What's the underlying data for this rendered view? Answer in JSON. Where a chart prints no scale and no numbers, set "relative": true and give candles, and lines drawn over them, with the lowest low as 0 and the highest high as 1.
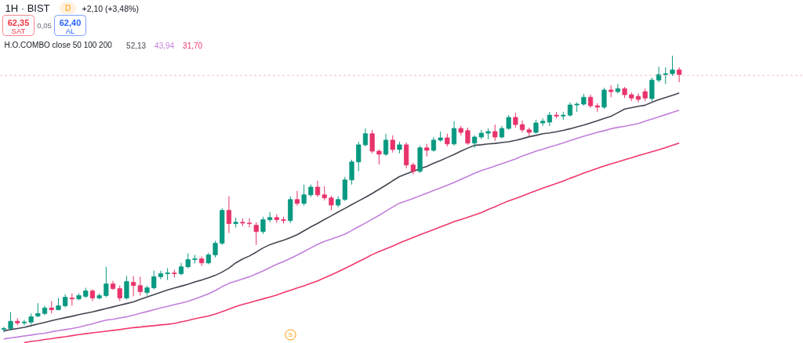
{
  "chart_data": {
    "type": "candlestick",
    "title": "1H · BIST",
    "relative": true,
    "categories": [
      null,
      null,
      null,
      null,
      null,
      null,
      null,
      null,
      null,
      null,
      null,
      null,
      null,
      null,
      null,
      null,
      null,
      null,
      null,
      null,
      null,
      null,
      null,
      null,
      null,
      null,
      null,
      null,
      null,
      null,
      null,
      null,
      null,
      null,
      null,
      null,
      null,
      null,
      null,
      null,
      null,
      null,
      null,
      null,
      null,
      null,
      null,
      null,
      null,
      null,
      null,
      null,
      null,
      null,
      null,
      null,
      null,
      null,
      null,
      null,
      null,
      null,
      null,
      null,
      null,
      null,
      null,
      null,
      null,
      null,
      null,
      null,
      null,
      null,
      null,
      null,
      null,
      null,
      null,
      null,
      null,
      null,
      null,
      null,
      null,
      null,
      null,
      null,
      null,
      null,
      null,
      null,
      null,
      null,
      null,
      null,
      null,
      null,
      null,
      null
    ],
    "ohlc": [
      [
        0.011,
        0.02,
        0,
        0.014
      ],
      [
        0.014,
        0.073,
        0.008,
        0.04
      ],
      [
        0.04,
        0.051,
        0.025,
        0.034
      ],
      [
        0.034,
        0.045,
        0.025,
        0.037
      ],
      [
        0.037,
        0.068,
        0.028,
        0.056
      ],
      [
        0.059,
        0.105,
        0.054,
        0.068
      ],
      [
        0.068,
        0.096,
        0.062,
        0.088
      ],
      [
        0.088,
        0.113,
        0.068,
        0.082
      ],
      [
        0.082,
        0.124,
        0.079,
        0.096
      ],
      [
        0.096,
        0.138,
        0.09,
        0.127
      ],
      [
        0.124,
        0.141,
        0.096,
        0.121
      ],
      [
        0.121,
        0.141,
        0.116,
        0.133
      ],
      [
        0.13,
        0.161,
        0.124,
        0.15
      ],
      [
        0.15,
        0.155,
        0.113,
        0.124
      ],
      [
        0.124,
        0.141,
        0.119,
        0.133
      ],
      [
        0.133,
        0.237,
        0.127,
        0.175
      ],
      [
        0.175,
        0.186,
        0.153,
        0.158
      ],
      [
        0.158,
        0.169,
        0.113,
        0.124
      ],
      [
        0.124,
        0.203,
        0.119,
        0.184
      ],
      [
        0.181,
        0.203,
        0.13,
        0.169
      ],
      [
        0.169,
        0.201,
        0.133,
        0.147
      ],
      [
        0.144,
        0.169,
        0.133,
        0.161
      ],
      [
        0.161,
        0.223,
        0.155,
        0.201
      ],
      [
        0.201,
        0.223,
        0.192,
        0.212
      ],
      [
        0.212,
        0.232,
        0.189,
        0.215
      ],
      [
        0.215,
        0.226,
        0.198,
        0.212
      ],
      [
        0.212,
        0.251,
        0.206,
        0.237
      ],
      [
        0.237,
        0.285,
        0.232,
        0.263
      ],
      [
        0.263,
        0.28,
        0.249,
        0.266
      ],
      [
        0.266,
        0.274,
        0.24,
        0.251
      ],
      [
        0.251,
        0.288,
        0.246,
        0.28
      ],
      [
        0.28,
        0.331,
        0.271,
        0.322
      ],
      [
        0.322,
        0.449,
        0.316,
        0.441
      ],
      [
        0.441,
        0.492,
        0.359,
        0.393
      ],
      [
        0.393,
        0.415,
        0.379,
        0.398
      ],
      [
        0.398,
        0.412,
        0.384,
        0.395
      ],
      [
        0.395,
        0.412,
        0.379,
        0.393
      ],
      [
        0.387,
        0.398,
        0.316,
        0.364
      ],
      [
        0.364,
        0.418,
        0.356,
        0.407
      ],
      [
        0.407,
        0.435,
        0.398,
        0.415
      ],
      [
        0.415,
        0.427,
        0.395,
        0.407
      ],
      [
        0.407,
        0.418,
        0.393,
        0.404
      ],
      [
        0.404,
        0.492,
        0.395,
        0.48
      ],
      [
        0.48,
        0.511,
        0.458,
        0.466
      ],
      [
        0.466,
        0.534,
        0.458,
        0.497
      ],
      [
        0.497,
        0.534,
        0.489,
        0.525
      ],
      [
        0.525,
        0.548,
        0.489,
        0.497
      ],
      [
        0.497,
        0.528,
        0.477,
        0.486
      ],
      [
        0.486,
        0.494,
        0.441,
        0.46
      ],
      [
        0.46,
        0.492,
        0.452,
        0.48
      ],
      [
        0.48,
        0.562,
        0.475,
        0.551
      ],
      [
        0.551,
        0.624,
        0.534,
        0.616
      ],
      [
        0.616,
        0.689,
        0.582,
        0.678
      ],
      [
        0.678,
        0.737,
        0.672,
        0.718
      ],
      [
        0.718,
        0.732,
        0.647,
        0.655
      ],
      [
        0.655,
        0.661,
        0.607,
        0.644
      ],
      [
        0.644,
        0.718,
        0.638,
        0.695
      ],
      [
        0.695,
        0.712,
        0.65,
        0.661
      ],
      [
        0.661,
        0.689,
        0.647,
        0.678
      ],
      [
        0.678,
        0.686,
        0.593,
        0.605
      ],
      [
        0.605,
        0.613,
        0.571,
        0.582
      ],
      [
        0.582,
        0.675,
        0.576,
        0.667
      ],
      [
        0.667,
        0.681,
        0.636,
        0.658
      ],
      [
        0.658,
        0.706,
        0.653,
        0.695
      ],
      [
        0.695,
        0.726,
        0.689,
        0.703
      ],
      [
        0.703,
        0.718,
        0.672,
        0.681
      ],
      [
        0.681,
        0.763,
        0.675,
        0.737
      ],
      [
        0.737,
        0.746,
        0.712,
        0.723
      ],
      [
        0.729,
        0.74,
        0.678,
        0.684
      ],
      [
        0.684,
        0.712,
        0.667,
        0.706
      ],
      [
        0.706,
        0.732,
        0.698,
        0.72
      ],
      [
        0.72,
        0.737,
        0.698,
        0.726
      ],
      [
        0.726,
        0.751,
        0.692,
        0.706
      ],
      [
        0.706,
        0.746,
        0.701,
        0.737
      ],
      [
        0.737,
        0.785,
        0.732,
        0.777
      ],
      [
        0.777,
        0.794,
        0.74,
        0.751
      ],
      [
        0.751,
        0.766,
        0.723,
        0.732
      ],
      [
        0.732,
        0.74,
        0.709,
        0.723
      ],
      [
        0.723,
        0.768,
        0.718,
        0.757
      ],
      [
        0.757,
        0.774,
        0.746,
        0.763
      ],
      [
        0.76,
        0.797,
        0.746,
        0.785
      ],
      [
        0.785,
        0.797,
        0.774,
        0.782
      ],
      [
        0.782,
        0.797,
        0.768,
        0.785
      ],
      [
        0.785,
        0.831,
        0.78,
        0.822
      ],
      [
        0.822,
        0.831,
        0.797,
        0.825
      ],
      [
        0.825,
        0.862,
        0.819,
        0.85
      ],
      [
        0.85,
        0.859,
        0.811,
        0.819
      ],
      [
        0.819,
        0.828,
        0.797,
        0.814
      ],
      [
        0.814,
        0.884,
        0.808,
        0.876
      ],
      [
        0.876,
        0.893,
        0.85,
        0.87
      ],
      [
        0.87,
        0.898,
        0.864,
        0.881
      ],
      [
        0.881,
        0.887,
        0.847,
        0.859
      ],
      [
        0.859,
        0.867,
        0.836,
        0.847
      ],
      [
        0.853,
        0.864,
        0.831,
        0.842
      ],
      [
        0.87,
        0.881,
        0.836,
        0.847
      ],
      [
        0.845,
        0.921,
        0.836,
        0.912
      ],
      [
        0.912,
        0.96,
        0.904,
        0.932
      ],
      [
        0.932,
        0.958,
        0.898,
        0.935
      ],
      [
        0.935,
        1,
        0.927,
        0.949
      ],
      [
        0.949,
        0.958,
        0.904,
        0.932
      ]
    ],
    "colors": [
      "#089981",
      "#089981",
      "#e8336b",
      "#089981",
      "#089981",
      "#089981",
      "#089981",
      "#e8336b",
      "#089981",
      "#089981",
      "#e8336b",
      "#089981",
      "#089981",
      "#e8336b",
      "#089981",
      "#089981",
      "#e8336b",
      "#e8336b",
      "#089981",
      "#e8336b",
      "#e8336b",
      "#089981",
      "#089981",
      "#089981",
      "#089981",
      "#e8336b",
      "#089981",
      "#089981",
      "#089981",
      "#e8336b",
      "#089981",
      "#089981",
      "#089981",
      "#e8336b",
      "#089981",
      "#e8336b",
      "#e8336b",
      "#e8336b",
      "#089981",
      "#089981",
      "#e8336b",
      "#e8336b",
      "#089981",
      "#e8336b",
      "#089981",
      "#089981",
      "#e8336b",
      "#e8336b",
      "#e8336b",
      "#089981",
      "#089981",
      "#089981",
      "#089981",
      "#089981",
      "#e8336b",
      "#e8336b",
      "#089981",
      "#e8336b",
      "#089981",
      "#e8336b",
      "#e8336b",
      "#089981",
      "#e8336b",
      "#089981",
      "#089981",
      "#e8336b",
      "#089981",
      "#e8336b",
      "#e8336b",
      "#089981",
      "#089981",
      "#089981",
      "#e8336b",
      "#089981",
      "#089981",
      "#e8336b",
      "#e8336b",
      "#e8336b",
      "#089981",
      "#089981",
      "#089981",
      "#e8336b",
      "#089981",
      "#089981",
      "#089981",
      "#089981",
      "#e8336b",
      "#e8336b",
      "#089981",
      "#e8336b",
      "#089981",
      "#e8336b",
      "#e8336b",
      "#e8336b",
      "#e8336b",
      "#089981",
      "#089981",
      "#089981",
      "#089981",
      "#e8336b"
    ],
    "series": [
      {
        "name": "52,13",
        "type": "line",
        "color": "#434651",
        "values": [
          0.005,
          0.01,
          0.014,
          0.018,
          0.024,
          0.03,
          0.036,
          0.042,
          0.048,
          0.053,
          0.058,
          0.064,
          0.069,
          0.074,
          0.08,
          0.086,
          0.092,
          0.098,
          0.104,
          0.11,
          0.119,
          0.128,
          0.136,
          0.145,
          0.153,
          0.16,
          0.167,
          0.174,
          0.182,
          0.189,
          0.197,
          0.206,
          0.218,
          0.232,
          0.251,
          0.265,
          0.276,
          0.29,
          0.305,
          0.317,
          0.325,
          0.333,
          0.342,
          0.353,
          0.367,
          0.381,
          0.394,
          0.408,
          0.421,
          0.435,
          0.448,
          0.462,
          0.475,
          0.488,
          0.502,
          0.517,
          0.532,
          0.548,
          0.563,
          0.573,
          0.582,
          0.591,
          0.6,
          0.611,
          0.621,
          0.632,
          0.643,
          0.655,
          0.666,
          0.676,
          0.678,
          0.681,
          0.683,
          0.686,
          0.689,
          0.694,
          0.7,
          0.707,
          0.712,
          0.718,
          0.721,
          0.725,
          0.73,
          0.736,
          0.743,
          0.749,
          0.757,
          0.765,
          0.773,
          0.781,
          0.794,
          0.807,
          0.812,
          0.817,
          0.821,
          0.832,
          0.841,
          0.849,
          0.857,
          0.865
        ]
      },
      {
        "name": "43,94",
        "type": "line",
        "color": "#c27fdc",
        "values": [
          -0.024,
          -0.02,
          -0.017,
          -0.013,
          -0.01,
          -0.006,
          -0.003,
          0.002,
          0.006,
          0.01,
          0.014,
          0.019,
          0.025,
          0.031,
          0.038,
          0.044,
          0.047,
          0.052,
          0.056,
          0.062,
          0.069,
          0.075,
          0.082,
          0.088,
          0.094,
          0.1,
          0.106,
          0.112,
          0.121,
          0.13,
          0.139,
          0.151,
          0.165,
          0.177,
          0.185,
          0.193,
          0.201,
          0.211,
          0.222,
          0.234,
          0.246,
          0.256,
          0.267,
          0.279,
          0.292,
          0.305,
          0.318,
          0.329,
          0.337,
          0.346,
          0.355,
          0.368,
          0.382,
          0.395,
          0.409,
          0.423,
          0.438,
          0.453,
          0.467,
          0.475,
          0.484,
          0.494,
          0.503,
          0.513,
          0.522,
          0.532,
          0.542,
          0.553,
          0.564,
          0.575,
          0.585,
          0.593,
          0.601,
          0.61,
          0.618,
          0.627,
          0.637,
          0.646,
          0.655,
          0.662,
          0.67,
          0.677,
          0.685,
          0.693,
          0.701,
          0.709,
          0.716,
          0.723,
          0.729,
          0.736,
          0.741,
          0.745,
          0.75,
          0.755,
          0.763,
          0.771,
          0.779,
          0.787,
          0.795,
          0.803
        ]
      },
      {
        "name": "31,70",
        "type": "line",
        "color": "#f0386c",
        "values": [
          null,
          null,
          null,
          -0.037,
          -0.033,
          -0.03,
          -0.026,
          -0.023,
          -0.019,
          -0.016,
          -0.012,
          -0.008,
          -0.005,
          -0.002,
          0.001,
          0.004,
          0.007,
          0.01,
          0.014,
          0.017,
          0.019,
          0.022,
          0.024,
          0.027,
          0.029,
          0.032,
          0.038,
          0.043,
          0.049,
          0.054,
          0.059,
          0.066,
          0.075,
          0.084,
          0.093,
          0.101,
          0.107,
          0.114,
          0.121,
          0.128,
          0.135,
          0.144,
          0.152,
          0.16,
          0.168,
          0.177,
          0.186,
          0.197,
          0.208,
          0.219,
          0.231,
          0.243,
          0.256,
          0.268,
          0.281,
          0.292,
          0.302,
          0.312,
          0.323,
          0.333,
          0.343,
          0.353,
          0.362,
          0.371,
          0.381,
          0.39,
          0.4,
          0.408,
          0.416,
          0.424,
          0.433,
          0.444,
          0.454,
          0.465,
          0.475,
          0.484,
          0.493,
          0.503,
          0.512,
          0.521,
          0.53,
          0.538,
          0.547,
          0.557,
          0.566,
          0.576,
          0.584,
          0.593,
          0.601,
          0.609,
          0.616,
          0.624,
          0.631,
          0.639,
          0.646,
          0.653,
          0.66,
          0.668,
          0.676,
          0.684
        ]
      }
    ],
    "legend_title": "H.O.COMBO close 50 100 200",
    "legend": "top left",
    "ref_lines": [
      {
        "axis": "y",
        "value": 0.929,
        "color": "#f4a3b4",
        "line_style": "dotted"
      }
    ],
    "annotations": [
      "62,35",
      "SAT",
      "0,05",
      "62,40",
      "AL",
      "D",
      "+2,10 (+3,48%)",
      "S"
    ]
  }
}
